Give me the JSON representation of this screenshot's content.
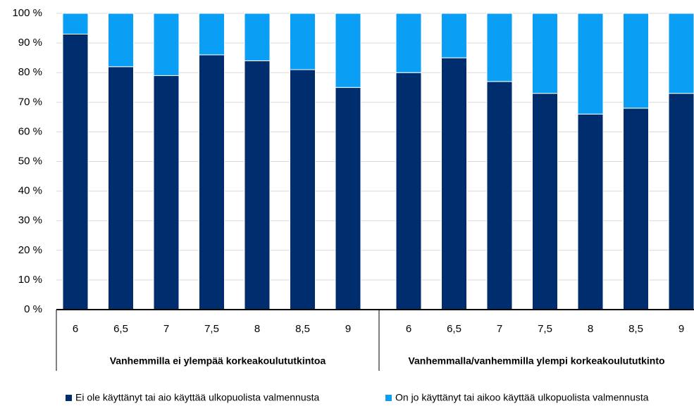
{
  "chart_data": {
    "type": "bar",
    "stacked": true,
    "groups": [
      {
        "name": "Vanhemmilla ei ylempää korkeakoulututkintoa",
        "categories": [
          "6",
          "6,5",
          "7",
          "7,5",
          "8",
          "8,5",
          "9"
        ]
      },
      {
        "name": "Vanhemmalla/vanhemmilla ylempi korkeakoulututkinto",
        "categories": [
          "6",
          "6,5",
          "7",
          "7,5",
          "8",
          "8,5",
          "9"
        ]
      }
    ],
    "series": [
      {
        "name": "Ei ole käyttänyt tai aio käyttää ulkopuolista valmennusta",
        "color": "#002d6e",
        "values": [
          93,
          82,
          79,
          86,
          84,
          81,
          75,
          80,
          85,
          77,
          73,
          66,
          68,
          73
        ]
      },
      {
        "name": "On jo käyttänyt tai aikoo käyttää ulkopuolista valmennusta",
        "color": "#0a9ef5",
        "values": [
          7,
          18,
          21,
          14,
          16,
          19,
          25,
          20,
          15,
          23,
          27,
          34,
          32,
          27
        ]
      }
    ],
    "ylim": [
      0,
      100
    ],
    "yticks": [
      {
        "value": 0,
        "label": "0 %"
      },
      {
        "value": 10,
        "label": "10 %"
      },
      {
        "value": 20,
        "label": "20 %"
      },
      {
        "value": 30,
        "label": "30 %"
      },
      {
        "value": 40,
        "label": "40 %"
      },
      {
        "value": 50,
        "label": "50 %"
      },
      {
        "value": 60,
        "label": "60 %"
      },
      {
        "value": 70,
        "label": "70 %"
      },
      {
        "value": 80,
        "label": "80 %"
      },
      {
        "value": 90,
        "label": "90 %"
      },
      {
        "value": 100,
        "label": "100 %"
      }
    ],
    "grid": true,
    "legend": "bottom"
  }
}
